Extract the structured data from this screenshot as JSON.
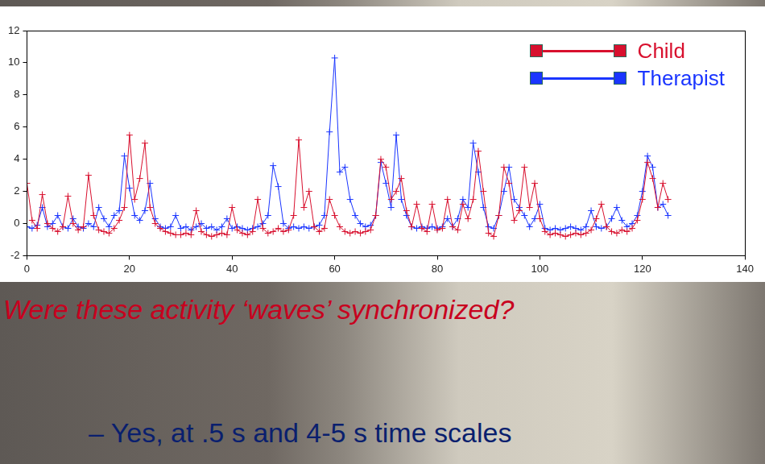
{
  "chart_data": {
    "type": "line",
    "x": [
      0,
      1,
      2,
      3,
      4,
      5,
      6,
      7,
      8,
      9,
      10,
      11,
      12,
      13,
      14,
      15,
      16,
      17,
      18,
      19,
      20,
      21,
      22,
      23,
      24,
      25,
      26,
      27,
      28,
      29,
      30,
      31,
      32,
      33,
      34,
      35,
      36,
      37,
      38,
      39,
      40,
      41,
      42,
      43,
      44,
      45,
      46,
      47,
      48,
      49,
      50,
      51,
      52,
      53,
      54,
      55,
      56,
      57,
      58,
      59,
      60,
      61,
      62,
      63,
      64,
      65,
      66,
      67,
      68,
      69,
      70,
      71,
      72,
      73,
      74,
      75,
      76,
      77,
      78,
      79,
      80,
      81,
      82,
      83,
      84,
      85,
      86,
      87,
      88,
      89,
      90,
      91,
      92,
      93,
      94,
      95,
      96,
      97,
      98,
      99,
      100,
      101,
      102,
      103,
      104,
      105,
      106,
      107,
      108,
      109,
      110,
      111,
      112,
      113,
      114,
      115,
      116,
      117,
      118,
      119,
      120,
      121,
      122,
      123,
      124,
      125
    ],
    "series": [
      {
        "name": "Child",
        "color": "#d8102e",
        "marker": "cross",
        "line_style": "solid",
        "values": [
          2.5,
          0.2,
          -0.3,
          1.8,
          0,
          -0.3,
          -0.5,
          -0.2,
          1.7,
          0,
          -0.4,
          -0.2,
          3.0,
          0.5,
          -0.4,
          -0.5,
          -0.6,
          -0.3,
          0.2,
          1.0,
          5.5,
          1.5,
          2.8,
          5.0,
          1.0,
          0,
          -0.3,
          -0.5,
          -0.6,
          -0.7,
          -0.7,
          -0.6,
          -0.7,
          0.8,
          -0.5,
          -0.7,
          -0.8,
          -0.7,
          -0.6,
          -0.7,
          1.0,
          -0.4,
          -0.6,
          -0.7,
          -0.5,
          1.5,
          -0.3,
          -0.6,
          -0.5,
          -0.3,
          -0.5,
          -0.4,
          0.5,
          5.2,
          1.0,
          2.0,
          -0.2,
          -0.5,
          -0.3,
          1.5,
          0.5,
          -0.2,
          -0.5,
          -0.6,
          -0.5,
          -0.6,
          -0.5,
          -0.4,
          0.5,
          4.0,
          3.5,
          1.5,
          2.0,
          2.8,
          0.8,
          -0.2,
          1.2,
          -0.3,
          -0.5,
          1.2,
          -0.4,
          -0.3,
          1.5,
          -0.2,
          -0.4,
          1.2,
          0.3,
          1.5,
          4.5,
          2.0,
          -0.6,
          -0.8,
          0.5,
          3.5,
          2.5,
          0.2,
          0.8,
          3.5,
          1.0,
          2.5,
          0.3,
          -0.5,
          -0.7,
          -0.6,
          -0.7,
          -0.8,
          -0.7,
          -0.6,
          -0.7,
          -0.6,
          -0.4,
          0.3,
          1.2,
          -0.2,
          -0.5,
          -0.6,
          -0.4,
          -0.5,
          -0.3,
          0.2,
          1.5,
          3.8,
          2.8,
          1.0,
          2.5,
          1.5
        ]
      },
      {
        "name": "Therapist",
        "color": "#1a35ff",
        "marker": "cross",
        "line_style": "solid",
        "values": [
          -0.2,
          -0.3,
          -0.1,
          1.0,
          -0.2,
          0,
          0.5,
          -0.2,
          -0.3,
          0.3,
          -0.2,
          -0.3,
          0,
          -0.2,
          1.0,
          0.3,
          -0.2,
          0.5,
          0.8,
          4.2,
          2.2,
          0.5,
          0.2,
          0.8,
          2.5,
          0.3,
          -0.2,
          -0.3,
          -0.2,
          0.5,
          -0.3,
          -0.2,
          -0.4,
          -0.2,
          0,
          -0.3,
          -0.2,
          -0.4,
          -0.2,
          0.3,
          -0.3,
          -0.2,
          -0.3,
          -0.4,
          -0.3,
          -0.2,
          0,
          0.5,
          3.6,
          2.3,
          0,
          -0.3,
          -0.2,
          -0.3,
          -0.2,
          -0.3,
          -0.2,
          -0.1,
          0.5,
          5.7,
          10.3,
          3.2,
          3.5,
          1.5,
          0.5,
          0,
          -0.2,
          -0.1,
          0.5,
          3.8,
          2.5,
          1.0,
          5.5,
          1.5,
          0.5,
          -0.2,
          -0.3,
          -0.2,
          -0.3,
          -0.2,
          -0.3,
          -0.2,
          0.3,
          -0.2,
          0.3,
          1.5,
          1.0,
          5.0,
          3.2,
          1.0,
          -0.2,
          -0.3,
          0.5,
          2.0,
          3.5,
          1.5,
          1.0,
          0.5,
          -0.2,
          0.3,
          1.2,
          -0.3,
          -0.4,
          -0.3,
          -0.4,
          -0.3,
          -0.2,
          -0.3,
          -0.4,
          -0.2,
          0.8,
          -0.2,
          -0.3,
          -0.2,
          0.3,
          1.0,
          0.2,
          -0.2,
          0,
          0.5,
          2.0,
          4.2,
          3.5,
          1.0,
          1.2,
          0.5
        ]
      }
    ],
    "xlim": [
      0,
      140
    ],
    "xticks": [
      0,
      20,
      40,
      60,
      80,
      100,
      120,
      140
    ],
    "ylim": [
      -2,
      12
    ],
    "yticks": [
      -2,
      0,
      2,
      4,
      6,
      8,
      10,
      12
    ],
    "grid": false,
    "legend": "upper right",
    "annotations": [
      "Were these activity ‘waves’ synchronized?",
      "– Yes, at .5 s and 4-5 s time scales"
    ]
  }
}
